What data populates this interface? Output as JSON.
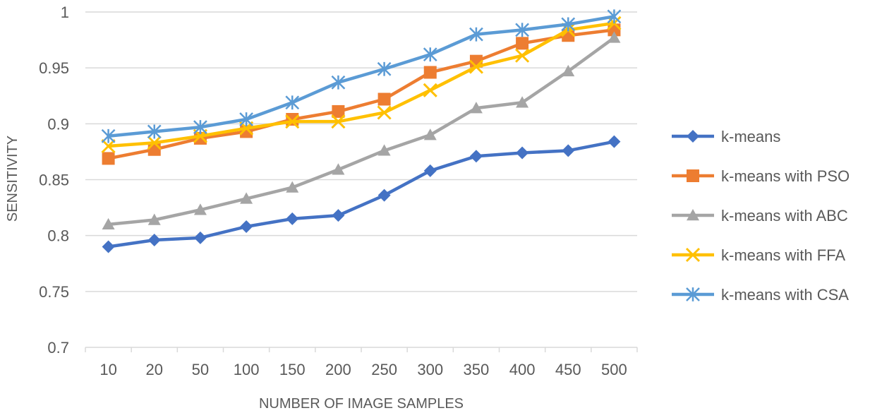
{
  "chart_data": {
    "type": "line",
    "title": "",
    "xlabel": "NUMBER OF IMAGE SAMPLES",
    "ylabel": "SENSITIVITY",
    "categories": [
      "10",
      "20",
      "50",
      "100",
      "150",
      "200",
      "250",
      "300",
      "350",
      "400",
      "450",
      "500"
    ],
    "ylim": [
      0.7,
      1.0
    ],
    "yticks": [
      0.7,
      0.75,
      0.8,
      0.85,
      0.9,
      0.95,
      1
    ],
    "ytick_labels": [
      "0.7",
      "0.75",
      "0.8",
      "0.85",
      "0.9",
      "0.95",
      "1"
    ],
    "grid": "horizontal",
    "legend_position": "right",
    "series": [
      {
        "name": "k-means",
        "color": "#4472C4",
        "marker": "diamond",
        "values": [
          0.79,
          0.796,
          0.798,
          0.808,
          0.815,
          0.818,
          0.836,
          0.858,
          0.871,
          0.874,
          0.876,
          0.884
        ]
      },
      {
        "name": "k-means with PSO",
        "color": "#ED7D31",
        "marker": "square",
        "values": [
          0.869,
          0.877,
          0.887,
          0.893,
          0.904,
          0.911,
          0.922,
          0.946,
          0.956,
          0.972,
          0.979,
          0.984
        ]
      },
      {
        "name": "k-means with ABC",
        "color": "#A5A5A5",
        "marker": "triangle",
        "values": [
          0.81,
          0.814,
          0.823,
          0.833,
          0.843,
          0.859,
          0.876,
          0.89,
          0.914,
          0.919,
          0.947,
          0.977
        ]
      },
      {
        "name": "k-means with FFA",
        "color": "#FFC000",
        "marker": "x",
        "values": [
          0.88,
          0.883,
          0.889,
          0.896,
          0.902,
          0.902,
          0.91,
          0.93,
          0.951,
          0.961,
          0.984,
          0.99
        ]
      },
      {
        "name": "k-means with CSA",
        "color": "#5B9BD5",
        "marker": "star",
        "values": [
          0.889,
          0.893,
          0.897,
          0.904,
          0.919,
          0.937,
          0.949,
          0.962,
          0.98,
          0.984,
          0.989,
          0.996
        ]
      }
    ]
  }
}
